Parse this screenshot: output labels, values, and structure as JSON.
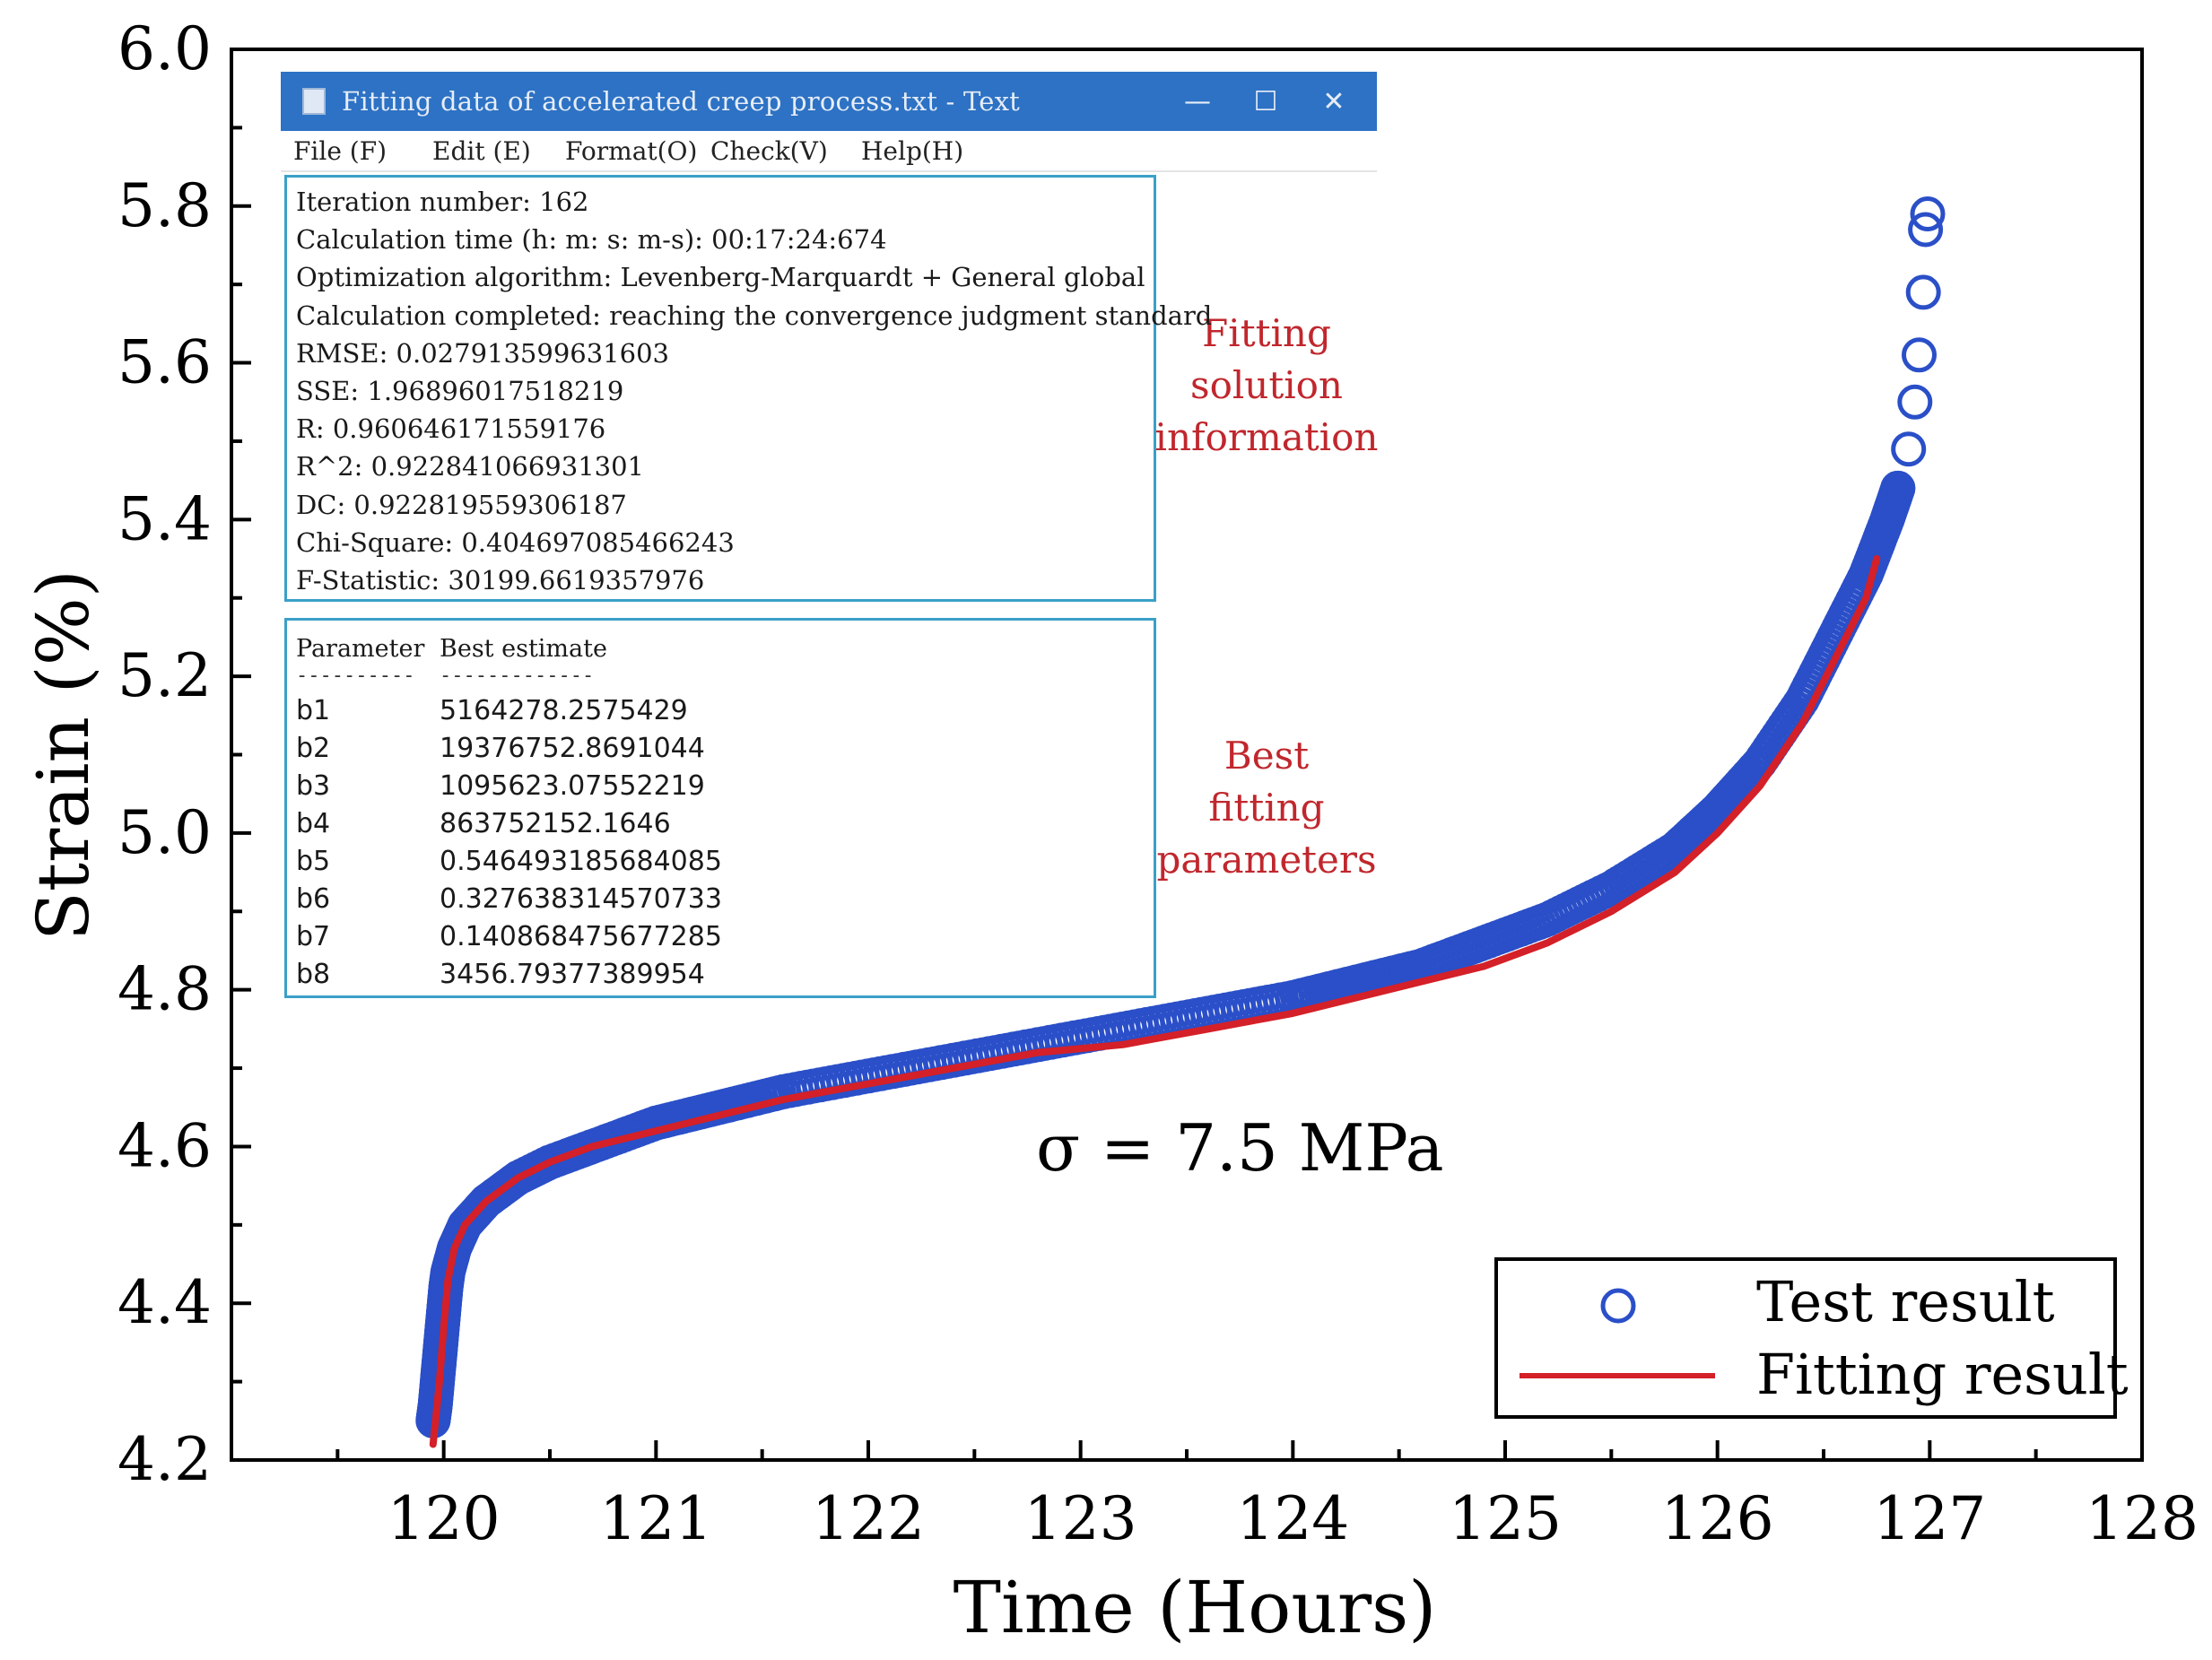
{
  "chart_data": {
    "type": "scatter",
    "xlabel": "Time (Hours)",
    "ylabel": "Strain (%)",
    "xlim": [
      119,
      128
    ],
    "ylim": [
      4.2,
      6.0
    ],
    "xticks": [
      "120",
      "121",
      "122",
      "123",
      "124",
      "125",
      "126",
      "127",
      "128"
    ],
    "yticks": [
      "4.2",
      "4.4",
      "4.6",
      "4.8",
      "5.0",
      "5.2",
      "5.4",
      "5.6",
      "5.8",
      "6.0"
    ],
    "annotation": "σ = 7.5 MPa",
    "legend": {
      "position": "bottom-right",
      "entries": [
        "Test result",
        "Fitting result"
      ]
    },
    "colors": {
      "test": "#2f55d4",
      "fit": "#d42028",
      "test_outline": "#2a4fc8"
    },
    "series": [
      {
        "name": "Test result",
        "style": "circles",
        "x": [
          119.95,
          119.96,
          119.97,
          119.98,
          119.99,
          120.0,
          120.01,
          120.02,
          120.05,
          120.1,
          120.2,
          120.35,
          120.5,
          120.7,
          121.0,
          121.3,
          121.6,
          122.0,
          122.4,
          122.8,
          123.2,
          123.6,
          124.0,
          124.3,
          124.6,
          124.9,
          125.2,
          125.5,
          125.8,
          126.0,
          126.2,
          126.4,
          126.55,
          126.7,
          126.8,
          126.85,
          126.9,
          126.93,
          126.95,
          126.97,
          126.98,
          126.99
        ],
        "y": [
          4.25,
          4.27,
          4.3,
          4.33,
          4.36,
          4.39,
          4.42,
          4.44,
          4.47,
          4.5,
          4.53,
          4.56,
          4.58,
          4.6,
          4.63,
          4.65,
          4.67,
          4.69,
          4.71,
          4.73,
          4.75,
          4.77,
          4.79,
          4.81,
          4.83,
          4.86,
          4.89,
          4.93,
          4.98,
          5.03,
          5.09,
          5.17,
          5.25,
          5.33,
          5.4,
          5.44,
          5.49,
          5.55,
          5.61,
          5.69,
          5.77,
          5.79
        ]
      },
      {
        "name": "Fitting result",
        "style": "line",
        "x": [
          119.95,
          119.98,
          120.0,
          120.02,
          120.05,
          120.1,
          120.2,
          120.35,
          120.5,
          120.7,
          121.0,
          121.3,
          121.6,
          122.0,
          122.4,
          122.8,
          123.2,
          123.6,
          124.0,
          124.3,
          124.6,
          124.9,
          125.2,
          125.5,
          125.8,
          126.0,
          126.2,
          126.4,
          126.55,
          126.7,
          126.75
        ],
        "y": [
          4.22,
          4.3,
          4.37,
          4.43,
          4.47,
          4.5,
          4.53,
          4.56,
          4.58,
          4.6,
          4.62,
          4.64,
          4.66,
          4.68,
          4.7,
          4.72,
          4.73,
          4.75,
          4.77,
          4.79,
          4.81,
          4.83,
          4.86,
          4.9,
          4.95,
          5.0,
          5.06,
          5.14,
          5.22,
          5.3,
          5.35
        ]
      }
    ]
  },
  "side_notes": {
    "fitting_solution": [
      "Fitting",
      "solution",
      "information"
    ],
    "best_fitting": [
      "Best",
      "fitting",
      "parameters"
    ]
  },
  "window": {
    "title": "Fitting data of accelerated creep process.txt - Text",
    "controls": {
      "minimize": "—",
      "maximize": "☐",
      "close": "✕"
    },
    "menu": [
      "File (F)",
      "Edit (E)",
      "Format(O)",
      "Check(V)",
      "Help(H)"
    ],
    "info_lines": [
      "Iteration number: 162",
      "Calculation time (h: m: s: m-s): 00:17:24:674",
      "Optimization algorithm: Levenberg-Marquardt + General global",
      "Calculation completed: reaching the convergence judgment standard",
      "RMSE: 0.027913599631603",
      "SSE: 1.96896017518219",
      "R: 0.960646171559176",
      "R^2: 0.922841066931301",
      "DC: 0.922819559306187",
      "Chi-Square: 0.404697085466243",
      "F-Statistic: 30199.6619357976"
    ],
    "param_header": [
      "Parameter",
      "Best estimate"
    ],
    "param_dashes": [
      "----------",
      "-------------"
    ],
    "params": [
      {
        "name": "b1",
        "value": "5164278.2575429"
      },
      {
        "name": "b2",
        "value": "19376752.8691044"
      },
      {
        "name": "b3",
        "value": "1095623.07552219"
      },
      {
        "name": "b4",
        "value": "863752152.1646"
      },
      {
        "name": "b5",
        "value": "0.546493185684085"
      },
      {
        "name": "b6",
        "value": "0.327638314570733"
      },
      {
        "name": "b7",
        "value": "0.140868475677285"
      },
      {
        "name": "b8",
        "value": "3456.79377389954"
      }
    ]
  }
}
